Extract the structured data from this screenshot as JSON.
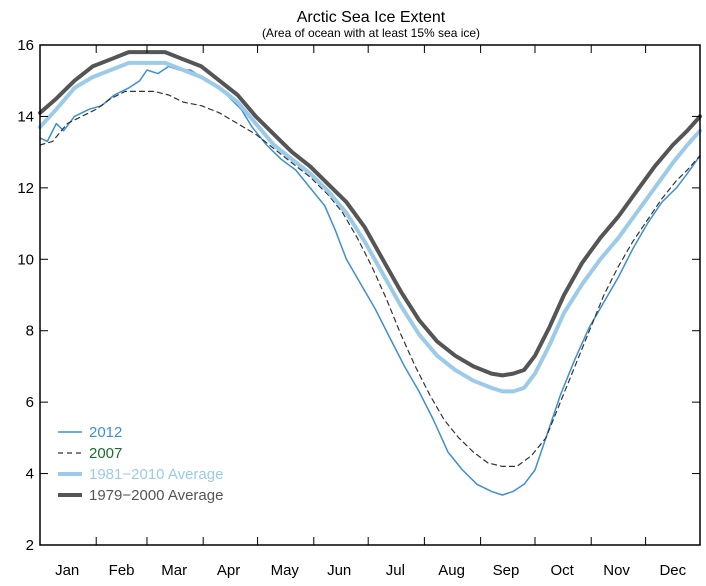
{
  "chart_data": {
    "type": "line",
    "title": "Arctic Sea Ice Extent",
    "subtitle": "(Area of ocean with at least 15% sea ice)",
    "xlabel": "",
    "ylabel": "",
    "ylim": [
      2,
      16
    ],
    "xlim": [
      1,
      365
    ],
    "grid": false,
    "legend_position": "bottom-left",
    "x_tick_labels": [
      {
        "label": "Jan",
        "day": 16
      },
      {
        "label": "Feb",
        "day": 46
      },
      {
        "label": "Mar",
        "day": 75
      },
      {
        "label": "Apr",
        "day": 105
      },
      {
        "label": "May",
        "day": 136
      },
      {
        "label": "Jun",
        "day": 166
      },
      {
        "label": "Jul",
        "day": 197
      },
      {
        "label": "Aug",
        "day": 228
      },
      {
        "label": "Sep",
        "day": 258
      },
      {
        "label": "Oct",
        "day": 289
      },
      {
        "label": "Nov",
        "day": 319
      },
      {
        "label": "Dec",
        "day": 350
      }
    ],
    "y_ticks": [
      2,
      4,
      6,
      8,
      10,
      12,
      14,
      16
    ],
    "series": [
      {
        "name": "2012",
        "color": "#3c8fd6",
        "style": "solid",
        "width": 1.5,
        "points": [
          [
            1,
            13.4
          ],
          [
            5,
            13.3
          ],
          [
            10,
            13.8
          ],
          [
            14,
            13.6
          ],
          [
            20,
            14.0
          ],
          [
            28,
            14.2
          ],
          [
            35,
            14.3
          ],
          [
            42,
            14.6
          ],
          [
            50,
            14.8
          ],
          [
            56,
            15.0
          ],
          [
            60,
            15.3
          ],
          [
            66,
            15.2
          ],
          [
            72,
            15.4
          ],
          [
            78,
            15.3
          ],
          [
            84,
            15.3
          ],
          [
            90,
            15.1
          ],
          [
            96,
            14.9
          ],
          [
            104,
            14.6
          ],
          [
            112,
            14.2
          ],
          [
            118,
            13.7
          ],
          [
            126,
            13.2
          ],
          [
            134,
            12.8
          ],
          [
            142,
            12.5
          ],
          [
            150,
            12.0
          ],
          [
            158,
            11.5
          ],
          [
            164,
            10.8
          ],
          [
            170,
            10.0
          ],
          [
            178,
            9.3
          ],
          [
            186,
            8.6
          ],
          [
            194,
            7.8
          ],
          [
            202,
            7.0
          ],
          [
            210,
            6.3
          ],
          [
            218,
            5.5
          ],
          [
            226,
            4.6
          ],
          [
            234,
            4.1
          ],
          [
            242,
            3.7
          ],
          [
            250,
            3.5
          ],
          [
            256,
            3.4
          ],
          [
            262,
            3.5
          ],
          [
            268,
            3.7
          ],
          [
            274,
            4.1
          ],
          [
            280,
            5.0
          ],
          [
            288,
            6.2
          ],
          [
            296,
            7.2
          ],
          [
            304,
            8.1
          ],
          [
            312,
            8.8
          ],
          [
            320,
            9.5
          ],
          [
            328,
            10.3
          ],
          [
            336,
            11.0
          ],
          [
            344,
            11.6
          ],
          [
            352,
            12.0
          ],
          [
            358,
            12.4
          ],
          [
            365,
            12.9
          ]
        ]
      },
      {
        "name": "2007",
        "color": "#333333",
        "style": "dashed",
        "width": 1.2,
        "points": [
          [
            1,
            13.2
          ],
          [
            8,
            13.3
          ],
          [
            16,
            13.8
          ],
          [
            24,
            14.0
          ],
          [
            32,
            14.2
          ],
          [
            40,
            14.5
          ],
          [
            48,
            14.7
          ],
          [
            56,
            14.7
          ],
          [
            64,
            14.7
          ],
          [
            72,
            14.6
          ],
          [
            80,
            14.4
          ],
          [
            90,
            14.3
          ],
          [
            100,
            14.1
          ],
          [
            110,
            13.8
          ],
          [
            120,
            13.5
          ],
          [
            130,
            13.1
          ],
          [
            140,
            12.7
          ],
          [
            150,
            12.3
          ],
          [
            160,
            11.8
          ],
          [
            168,
            11.3
          ],
          [
            176,
            10.6
          ],
          [
            184,
            9.8
          ],
          [
            192,
            8.9
          ],
          [
            200,
            7.9
          ],
          [
            208,
            7.0
          ],
          [
            216,
            6.2
          ],
          [
            224,
            5.5
          ],
          [
            232,
            5.0
          ],
          [
            240,
            4.6
          ],
          [
            248,
            4.3
          ],
          [
            256,
            4.2
          ],
          [
            264,
            4.2
          ],
          [
            272,
            4.5
          ],
          [
            280,
            5.0
          ],
          [
            288,
            6.0
          ],
          [
            296,
            7.0
          ],
          [
            304,
            8.0
          ],
          [
            312,
            9.0
          ],
          [
            320,
            9.8
          ],
          [
            328,
            10.5
          ],
          [
            336,
            11.1
          ],
          [
            344,
            11.7
          ],
          [
            352,
            12.2
          ],
          [
            358,
            12.5
          ],
          [
            365,
            12.9
          ]
        ]
      },
      {
        "name": "1981−2010 Average",
        "color": "#9bcbe8",
        "style": "solid",
        "width": 4,
        "points": [
          [
            1,
            13.7
          ],
          [
            10,
            14.2
          ],
          [
            20,
            14.8
          ],
          [
            30,
            15.1
          ],
          [
            40,
            15.3
          ],
          [
            50,
            15.5
          ],
          [
            60,
            15.5
          ],
          [
            70,
            15.5
          ],
          [
            80,
            15.3
          ],
          [
            90,
            15.1
          ],
          [
            100,
            14.8
          ],
          [
            110,
            14.4
          ],
          [
            120,
            13.8
          ],
          [
            130,
            13.2
          ],
          [
            140,
            12.8
          ],
          [
            150,
            12.4
          ],
          [
            160,
            11.9
          ],
          [
            170,
            11.3
          ],
          [
            180,
            10.5
          ],
          [
            190,
            9.6
          ],
          [
            200,
            8.7
          ],
          [
            210,
            7.9
          ],
          [
            220,
            7.3
          ],
          [
            230,
            6.9
          ],
          [
            240,
            6.6
          ],
          [
            250,
            6.4
          ],
          [
            256,
            6.3
          ],
          [
            262,
            6.3
          ],
          [
            268,
            6.4
          ],
          [
            274,
            6.8
          ],
          [
            282,
            7.6
          ],
          [
            290,
            8.5
          ],
          [
            300,
            9.3
          ],
          [
            310,
            10.0
          ],
          [
            320,
            10.6
          ],
          [
            330,
            11.3
          ],
          [
            340,
            12.0
          ],
          [
            350,
            12.7
          ],
          [
            358,
            13.2
          ],
          [
            365,
            13.6
          ]
        ]
      },
      {
        "name": "1979−2000 Average",
        "color": "#555555",
        "style": "solid",
        "width": 4,
        "points": [
          [
            1,
            14.1
          ],
          [
            10,
            14.5
          ],
          [
            20,
            15.0
          ],
          [
            30,
            15.4
          ],
          [
            40,
            15.6
          ],
          [
            50,
            15.8
          ],
          [
            60,
            15.8
          ],
          [
            70,
            15.8
          ],
          [
            80,
            15.6
          ],
          [
            90,
            15.4
          ],
          [
            100,
            15.0
          ],
          [
            110,
            14.6
          ],
          [
            120,
            14.0
          ],
          [
            130,
            13.5
          ],
          [
            140,
            13.0
          ],
          [
            150,
            12.6
          ],
          [
            160,
            12.1
          ],
          [
            170,
            11.6
          ],
          [
            180,
            10.9
          ],
          [
            190,
            10.0
          ],
          [
            200,
            9.1
          ],
          [
            210,
            8.3
          ],
          [
            220,
            7.7
          ],
          [
            230,
            7.3
          ],
          [
            240,
            7.0
          ],
          [
            250,
            6.8
          ],
          [
            256,
            6.75
          ],
          [
            262,
            6.8
          ],
          [
            268,
            6.9
          ],
          [
            274,
            7.3
          ],
          [
            282,
            8.1
          ],
          [
            290,
            9.0
          ],
          [
            300,
            9.9
          ],
          [
            310,
            10.6
          ],
          [
            320,
            11.2
          ],
          [
            330,
            11.9
          ],
          [
            340,
            12.6
          ],
          [
            350,
            13.2
          ],
          [
            358,
            13.6
          ],
          [
            365,
            14.0
          ]
        ]
      }
    ]
  }
}
